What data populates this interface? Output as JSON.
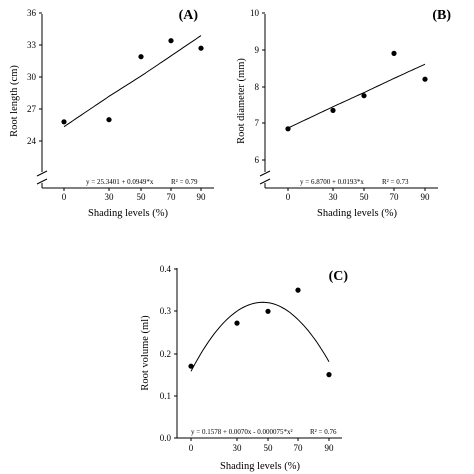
{
  "chart_data": [
    {
      "type": "scatter",
      "panel_label": "(A)",
      "xlabel": "Shading levels (%)",
      "ylabel": "Root length (cm)",
      "x_ticks": [
        "0",
        "30",
        "50",
        "70",
        "90"
      ],
      "y_ticks": [
        "24",
        "27",
        "30",
        "33",
        "36"
      ],
      "ylim": [
        24,
        36
      ],
      "axis_break": true,
      "points": [
        {
          "x": 0,
          "y": 25.8
        },
        {
          "x": 30,
          "y": 26.0
        },
        {
          "x": 50,
          "y": 31.9
        },
        {
          "x": 70,
          "y": 33.4
        },
        {
          "x": 90,
          "y": 32.7
        }
      ],
      "fit": {
        "type": "linear",
        "intercept": 25.3401,
        "slope": 0.0949
      },
      "equation": "y = 25.3401 + 0.0949*x",
      "r2": "R² = 0.79"
    },
    {
      "type": "scatter",
      "panel_label": "(B)",
      "xlabel": "Shading levels (%)",
      "ylabel": "Root diameter (mm)",
      "x_ticks": [
        "0",
        "30",
        "50",
        "70",
        "90"
      ],
      "y_ticks": [
        "6",
        "7",
        "8",
        "9",
        "10"
      ],
      "ylim": [
        6,
        10
      ],
      "axis_break": true,
      "points": [
        {
          "x": 0,
          "y": 6.85
        },
        {
          "x": 30,
          "y": 7.35
        },
        {
          "x": 50,
          "y": 7.75
        },
        {
          "x": 70,
          "y": 8.9
        },
        {
          "x": 90,
          "y": 8.2
        }
      ],
      "fit": {
        "type": "linear",
        "intercept": 6.87,
        "slope": 0.0193
      },
      "equation": "y = 6.8700 + 0.0193*x",
      "r2": "R² = 0.73"
    },
    {
      "type": "scatter",
      "panel_label": "(C)",
      "xlabel": "Shading levels (%)",
      "ylabel": "Root volume (ml)",
      "x_ticks": [
        "0",
        "30",
        "50",
        "70",
        "90"
      ],
      "y_ticks": [
        "0.0",
        "0.1",
        "0.2",
        "0.3",
        "0.4"
      ],
      "ylim": [
        0,
        0.4
      ],
      "axis_break": false,
      "points": [
        {
          "x": 0,
          "y": 0.17
        },
        {
          "x": 30,
          "y": 0.272
        },
        {
          "x": 50,
          "y": 0.3
        },
        {
          "x": 70,
          "y": 0.35
        },
        {
          "x": 90,
          "y": 0.15
        }
      ],
      "fit": {
        "type": "quadratic",
        "a": 0.1578,
        "b": 0.007,
        "c": -7.5e-05
      },
      "equation": "y = 0.1578 + 0.0070x - 0.000075*x²",
      "r2": "R² = 0.76"
    }
  ]
}
